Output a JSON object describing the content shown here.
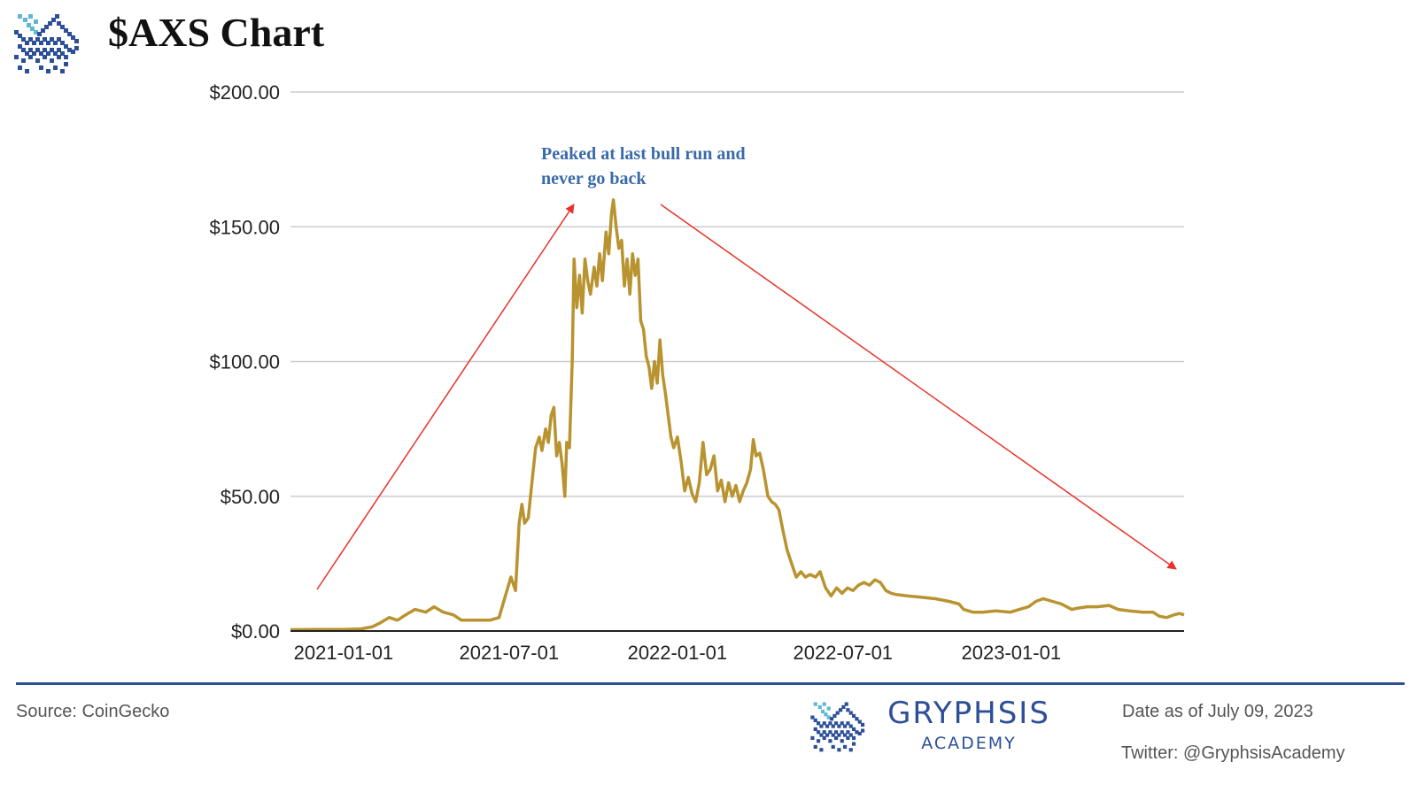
{
  "header": {
    "title": "$AXS Chart",
    "logo_icon": "gryphon-pixel-logo-icon"
  },
  "colors": {
    "line": "#b8932f",
    "grid": "#cccccc",
    "axis": "#222222",
    "annotation_text": "#3a6aa8",
    "annotation_arrow": "#e8332a",
    "brand": "#2d4f97",
    "brand_light": "#5fb7d4"
  },
  "chart_data": {
    "type": "line",
    "title": "",
    "xlabel": "",
    "ylabel": "",
    "ylim": [
      0,
      200
    ],
    "grid": true,
    "legend": "none",
    "y_ticks": [
      0,
      50,
      100,
      150,
      200
    ],
    "y_tick_labels": [
      "$0.00",
      "$50.00",
      "$100.00",
      "$150.00",
      "$200.00"
    ],
    "x_ticks": [
      "2021-01-01",
      "2021-07-01",
      "2022-01-01",
      "2022-07-01",
      "2023-01-01"
    ],
    "x_range": [
      "2020-11-04",
      "2023-07-09"
    ],
    "series": [
      {
        "points": [
          [
            "2020-11-04",
            0.5
          ],
          [
            "2020-12-01",
            0.6
          ],
          [
            "2020-12-31",
            0.6
          ],
          [
            "2021-01-20",
            0.8
          ],
          [
            "2021-02-01",
            1.5
          ],
          [
            "2021-02-10",
            3
          ],
          [
            "2021-02-20",
            5
          ],
          [
            "2021-03-01",
            4
          ],
          [
            "2021-03-10",
            6
          ],
          [
            "2021-03-20",
            8
          ],
          [
            "2021-04-01",
            7
          ],
          [
            "2021-04-10",
            9
          ],
          [
            "2021-04-20",
            7
          ],
          [
            "2021-05-01",
            6
          ],
          [
            "2021-05-10",
            4
          ],
          [
            "2021-05-25",
            4
          ],
          [
            "2021-06-10",
            4
          ],
          [
            "2021-06-20",
            5
          ],
          [
            "2021-06-26",
            12
          ],
          [
            "2021-07-03",
            20
          ],
          [
            "2021-07-08",
            15
          ],
          [
            "2021-07-12",
            40
          ],
          [
            "2021-07-15",
            47
          ],
          [
            "2021-07-18",
            40
          ],
          [
            "2021-07-22",
            42
          ],
          [
            "2021-07-26",
            55
          ],
          [
            "2021-07-30",
            68
          ],
          [
            "2021-08-03",
            72
          ],
          [
            "2021-08-06",
            67
          ],
          [
            "2021-08-10",
            75
          ],
          [
            "2021-08-13",
            70
          ],
          [
            "2021-08-16",
            80
          ],
          [
            "2021-08-19",
            83
          ],
          [
            "2021-08-22",
            65
          ],
          [
            "2021-08-25",
            70
          ],
          [
            "2021-08-28",
            62
          ],
          [
            "2021-08-31",
            50
          ],
          [
            "2021-09-02",
            70
          ],
          [
            "2021-09-05",
            68
          ],
          [
            "2021-09-08",
            100
          ],
          [
            "2021-09-10",
            138
          ],
          [
            "2021-09-13",
            120
          ],
          [
            "2021-09-16",
            132
          ],
          [
            "2021-09-19",
            118
          ],
          [
            "2021-09-22",
            138
          ],
          [
            "2021-09-25",
            130
          ],
          [
            "2021-09-28",
            125
          ],
          [
            "2021-10-02",
            135
          ],
          [
            "2021-10-05",
            128
          ],
          [
            "2021-10-08",
            140
          ],
          [
            "2021-10-11",
            130
          ],
          [
            "2021-10-15",
            148
          ],
          [
            "2021-10-18",
            140
          ],
          [
            "2021-10-21",
            155
          ],
          [
            "2021-10-23",
            160
          ],
          [
            "2021-10-26",
            150
          ],
          [
            "2021-10-29",
            142
          ],
          [
            "2021-11-01",
            145
          ],
          [
            "2021-11-04",
            128
          ],
          [
            "2021-11-07",
            138
          ],
          [
            "2021-11-10",
            125
          ],
          [
            "2021-11-13",
            140
          ],
          [
            "2021-11-16",
            132
          ],
          [
            "2021-11-19",
            138
          ],
          [
            "2021-11-22",
            115
          ],
          [
            "2021-11-25",
            112
          ],
          [
            "2021-11-28",
            102
          ],
          [
            "2021-12-01",
            98
          ],
          [
            "2021-12-04",
            90
          ],
          [
            "2021-12-07",
            100
          ],
          [
            "2021-12-10",
            92
          ],
          [
            "2021-12-13",
            108
          ],
          [
            "2021-12-16",
            95
          ],
          [
            "2021-12-19",
            88
          ],
          [
            "2021-12-22",
            80
          ],
          [
            "2021-12-25",
            72
          ],
          [
            "2021-12-28",
            68
          ],
          [
            "2022-01-01",
            72
          ],
          [
            "2022-01-05",
            63
          ],
          [
            "2022-01-09",
            52
          ],
          [
            "2022-01-13",
            57
          ],
          [
            "2022-01-17",
            51
          ],
          [
            "2022-01-21",
            48
          ],
          [
            "2022-01-25",
            55
          ],
          [
            "2022-01-29",
            70
          ],
          [
            "2022-02-02",
            58
          ],
          [
            "2022-02-06",
            60
          ],
          [
            "2022-02-10",
            65
          ],
          [
            "2022-02-14",
            52
          ],
          [
            "2022-02-18",
            56
          ],
          [
            "2022-02-22",
            48
          ],
          [
            "2022-02-26",
            55
          ],
          [
            "2022-03-02",
            50
          ],
          [
            "2022-03-06",
            54
          ],
          [
            "2022-03-10",
            48
          ],
          [
            "2022-03-14",
            52
          ],
          [
            "2022-03-18",
            55
          ],
          [
            "2022-03-22",
            60
          ],
          [
            "2022-03-25",
            71
          ],
          [
            "2022-03-28",
            65
          ],
          [
            "2022-04-01",
            66
          ],
          [
            "2022-04-05",
            60
          ],
          [
            "2022-04-10",
            50
          ],
          [
            "2022-04-14",
            48
          ],
          [
            "2022-04-18",
            47
          ],
          [
            "2022-04-22",
            45
          ],
          [
            "2022-04-26",
            38
          ],
          [
            "2022-05-01",
            30
          ],
          [
            "2022-05-06",
            25
          ],
          [
            "2022-05-11",
            20
          ],
          [
            "2022-05-16",
            22
          ],
          [
            "2022-05-21",
            20
          ],
          [
            "2022-05-26",
            21
          ],
          [
            "2022-06-01",
            20
          ],
          [
            "2022-06-06",
            22
          ],
          [
            "2022-06-12",
            16
          ],
          [
            "2022-06-18",
            13
          ],
          [
            "2022-06-24",
            16
          ],
          [
            "2022-06-30",
            14
          ],
          [
            "2022-07-06",
            16
          ],
          [
            "2022-07-12",
            15
          ],
          [
            "2022-07-18",
            17
          ],
          [
            "2022-07-24",
            18
          ],
          [
            "2022-07-30",
            17
          ],
          [
            "2022-08-05",
            19
          ],
          [
            "2022-08-11",
            18
          ],
          [
            "2022-08-17",
            15
          ],
          [
            "2022-08-23",
            14
          ],
          [
            "2022-08-29",
            13.5
          ],
          [
            "2022-09-10",
            13
          ],
          [
            "2022-09-25",
            12.5
          ],
          [
            "2022-10-10",
            12
          ],
          [
            "2022-10-25",
            11
          ],
          [
            "2022-11-05",
            10
          ],
          [
            "2022-11-10",
            8
          ],
          [
            "2022-11-20",
            7
          ],
          [
            "2022-12-01",
            7
          ],
          [
            "2022-12-15",
            7.5
          ],
          [
            "2022-12-31",
            7
          ],
          [
            "2023-01-10",
            8
          ],
          [
            "2023-01-20",
            9
          ],
          [
            "2023-01-28",
            11
          ],
          [
            "2023-02-05",
            12
          ],
          [
            "2023-02-15",
            11
          ],
          [
            "2023-02-25",
            10
          ],
          [
            "2023-03-08",
            8
          ],
          [
            "2023-03-15",
            8.5
          ],
          [
            "2023-03-25",
            9
          ],
          [
            "2023-04-05",
            9
          ],
          [
            "2023-04-18",
            9.5
          ],
          [
            "2023-04-28",
            8
          ],
          [
            "2023-05-10",
            7.5
          ],
          [
            "2023-05-25",
            7
          ],
          [
            "2023-06-05",
            7
          ],
          [
            "2023-06-12",
            5.5
          ],
          [
            "2023-06-20",
            5
          ],
          [
            "2023-06-28",
            6
          ],
          [
            "2023-07-04",
            6.5
          ],
          [
            "2023-07-09",
            6
          ]
        ]
      }
    ],
    "annotation": {
      "lines": [
        "Peaked at last bull run and",
        "never go back"
      ]
    }
  },
  "footer": {
    "source": "Source: CoinGecko",
    "brand_name": "GRYPHSIS",
    "brand_sub": "ACADEMY",
    "brand_icon": "gryphon-pixel-logo-icon",
    "date_note": "Date as of July 09, 2023",
    "twitter": "Twitter: @GryphsisAcademy"
  }
}
